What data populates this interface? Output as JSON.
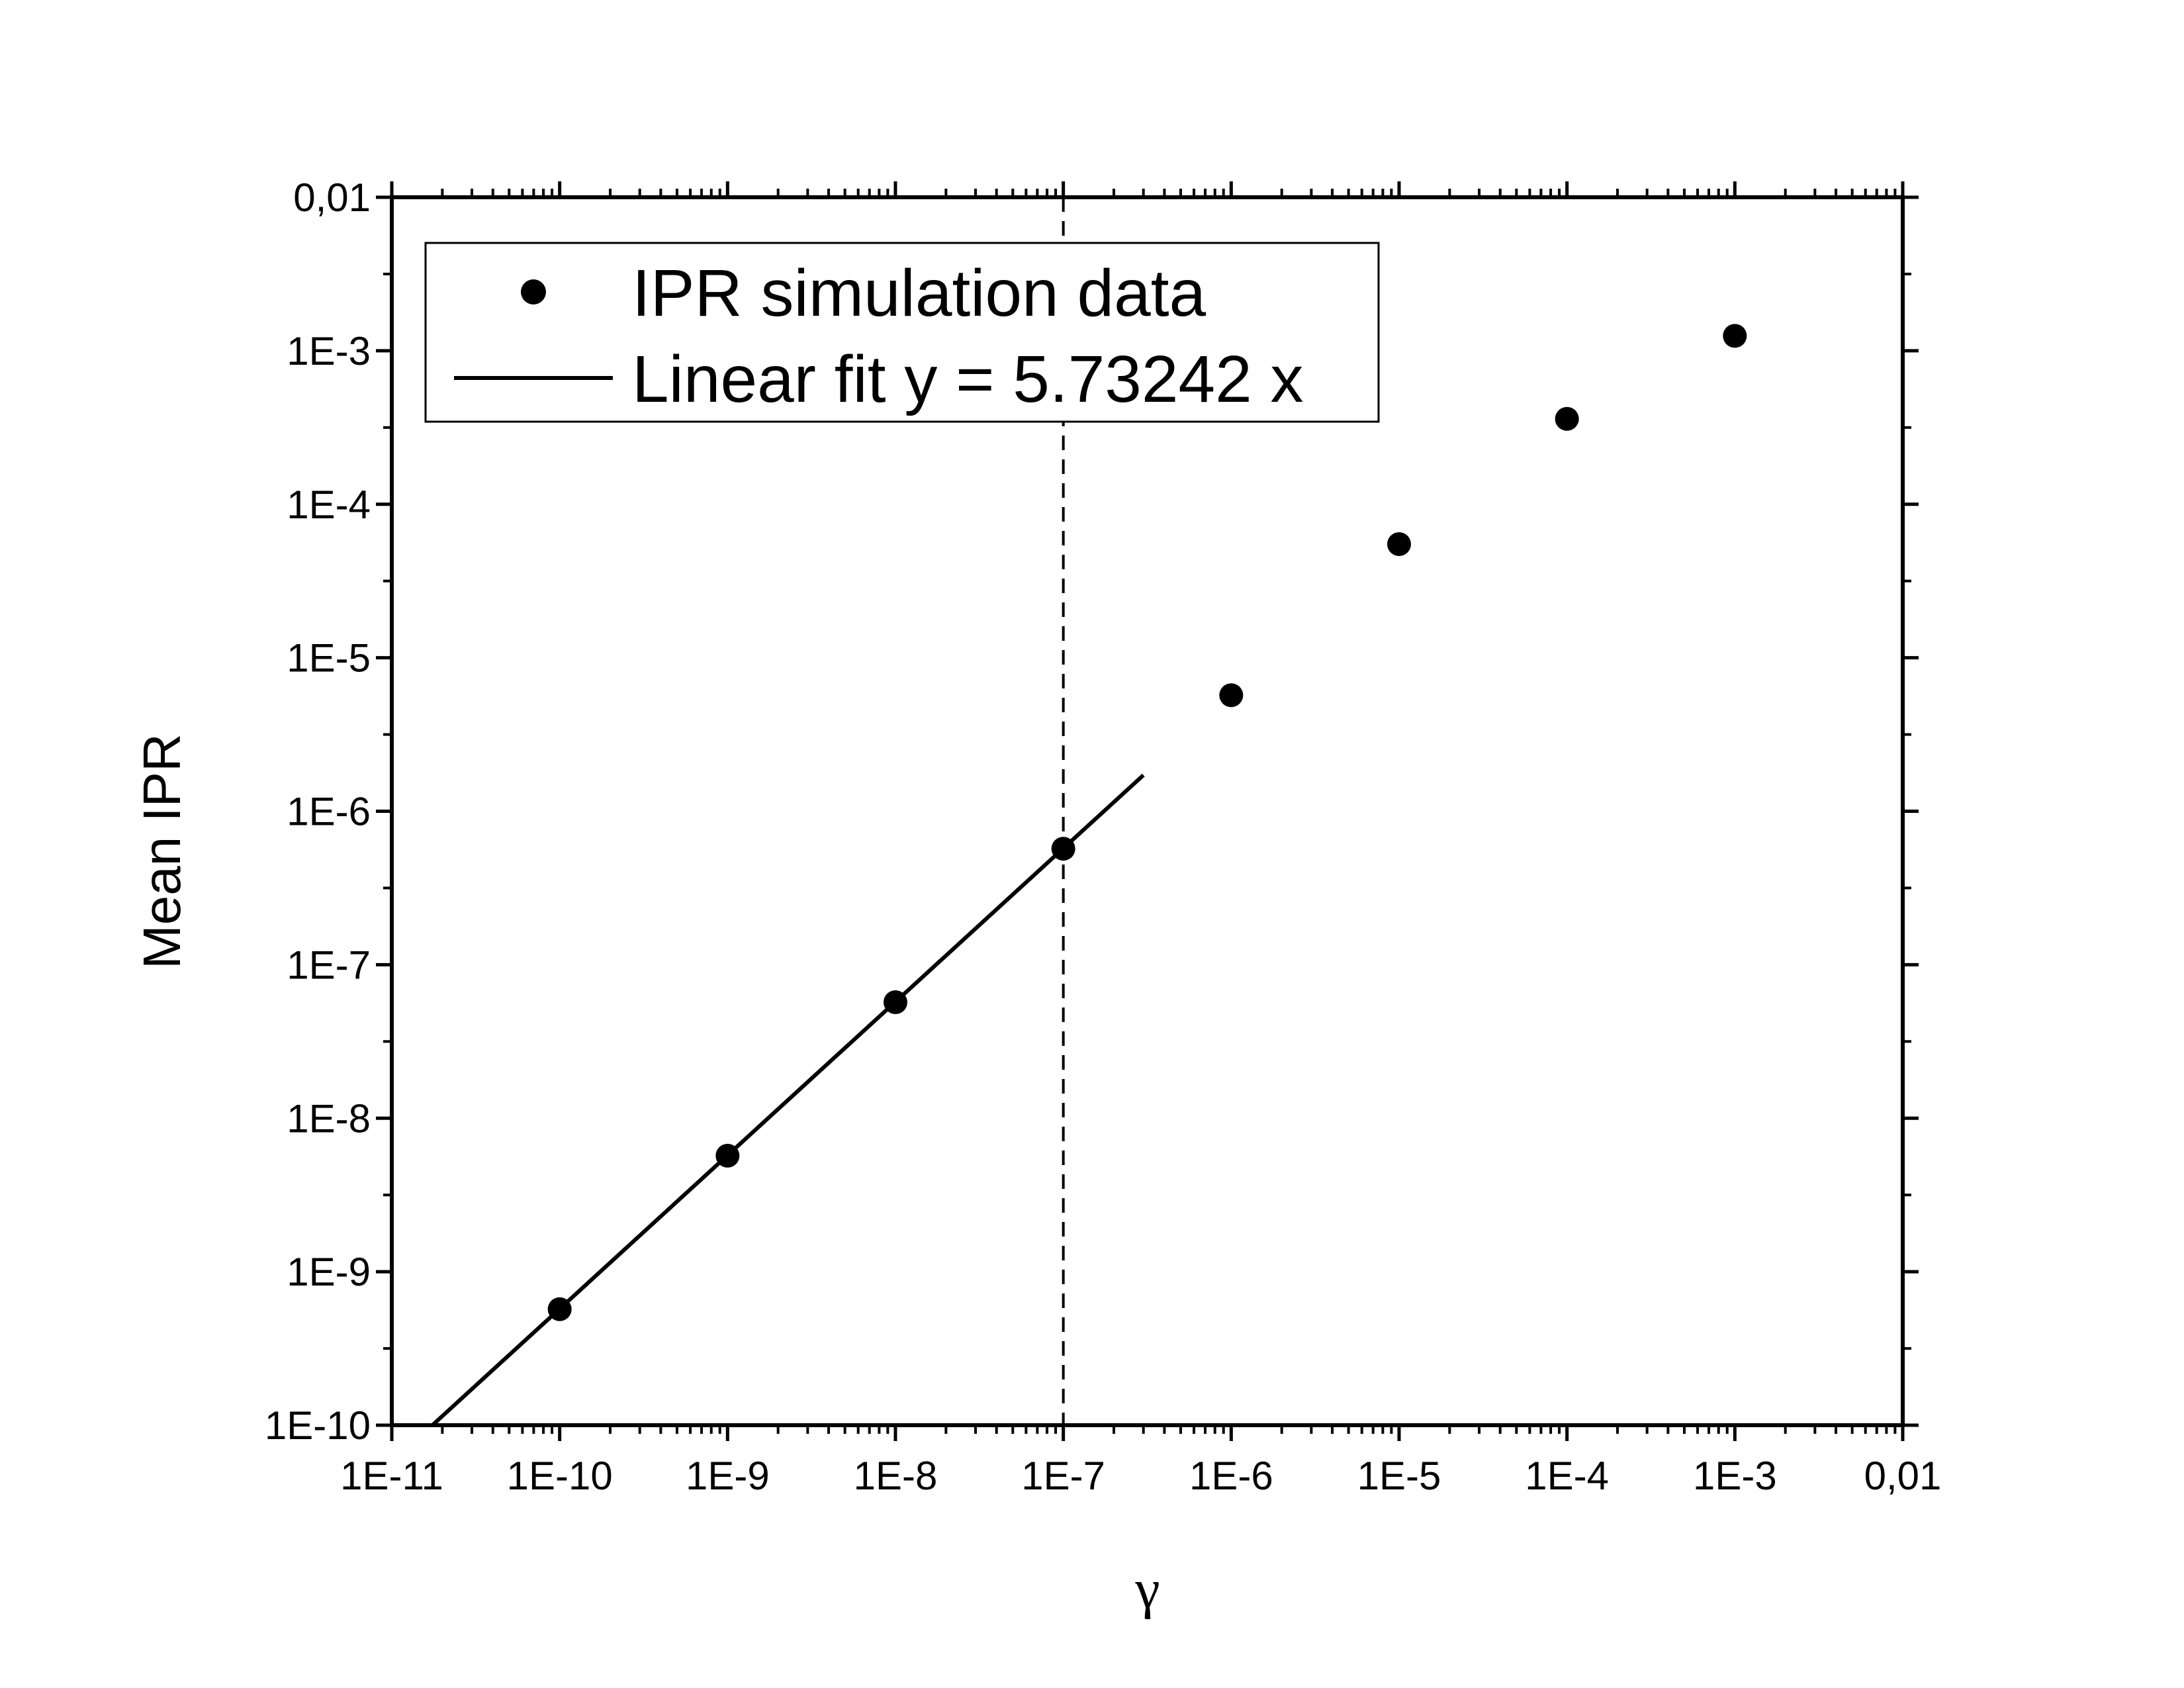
{
  "chart_data": {
    "type": "scatter",
    "title": "",
    "xlabel": "γ",
    "ylabel": "Mean IPR",
    "x_scale": "log",
    "y_scale": "log",
    "xlim": [
      1e-11,
      0.01
    ],
    "ylim": [
      1e-10,
      0.01
    ],
    "x_tick_labels": [
      "1E-11",
      "1E-10",
      "1E-9",
      "1E-8",
      "1E-7",
      "1E-6",
      "1E-5",
      "1E-4",
      "1E-3",
      "0,01"
    ],
    "y_tick_labels": [
      "1E-10",
      "1E-9",
      "1E-8",
      "1E-7",
      "1E-6",
      "1E-5",
      "1E-4",
      "1E-3",
      "0,01"
    ],
    "grid": false,
    "legend_position": "top-left",
    "series": [
      {
        "name": "IPR simulation data",
        "kind": "scatter",
        "color": "#000000",
        "x": [
          1e-10,
          1e-09,
          1e-08,
          1e-07,
          1e-06,
          1e-05,
          0.0001,
          0.001
        ],
        "y": [
          5.7e-10,
          5.7e-09,
          5.7e-08,
          5.7e-07,
          5.7e-06,
          5.5e-05,
          0.00036,
          0.00125
        ]
      },
      {
        "name": "Linear fit y = 5.73242 x",
        "kind": "line",
        "color": "#000000",
        "slope": 5.73242,
        "x_range": [
          1.75e-11,
          3e-07
        ]
      }
    ],
    "annotations": [
      {
        "type": "vertical-dashed-line",
        "x": 1e-07
      }
    ]
  }
}
